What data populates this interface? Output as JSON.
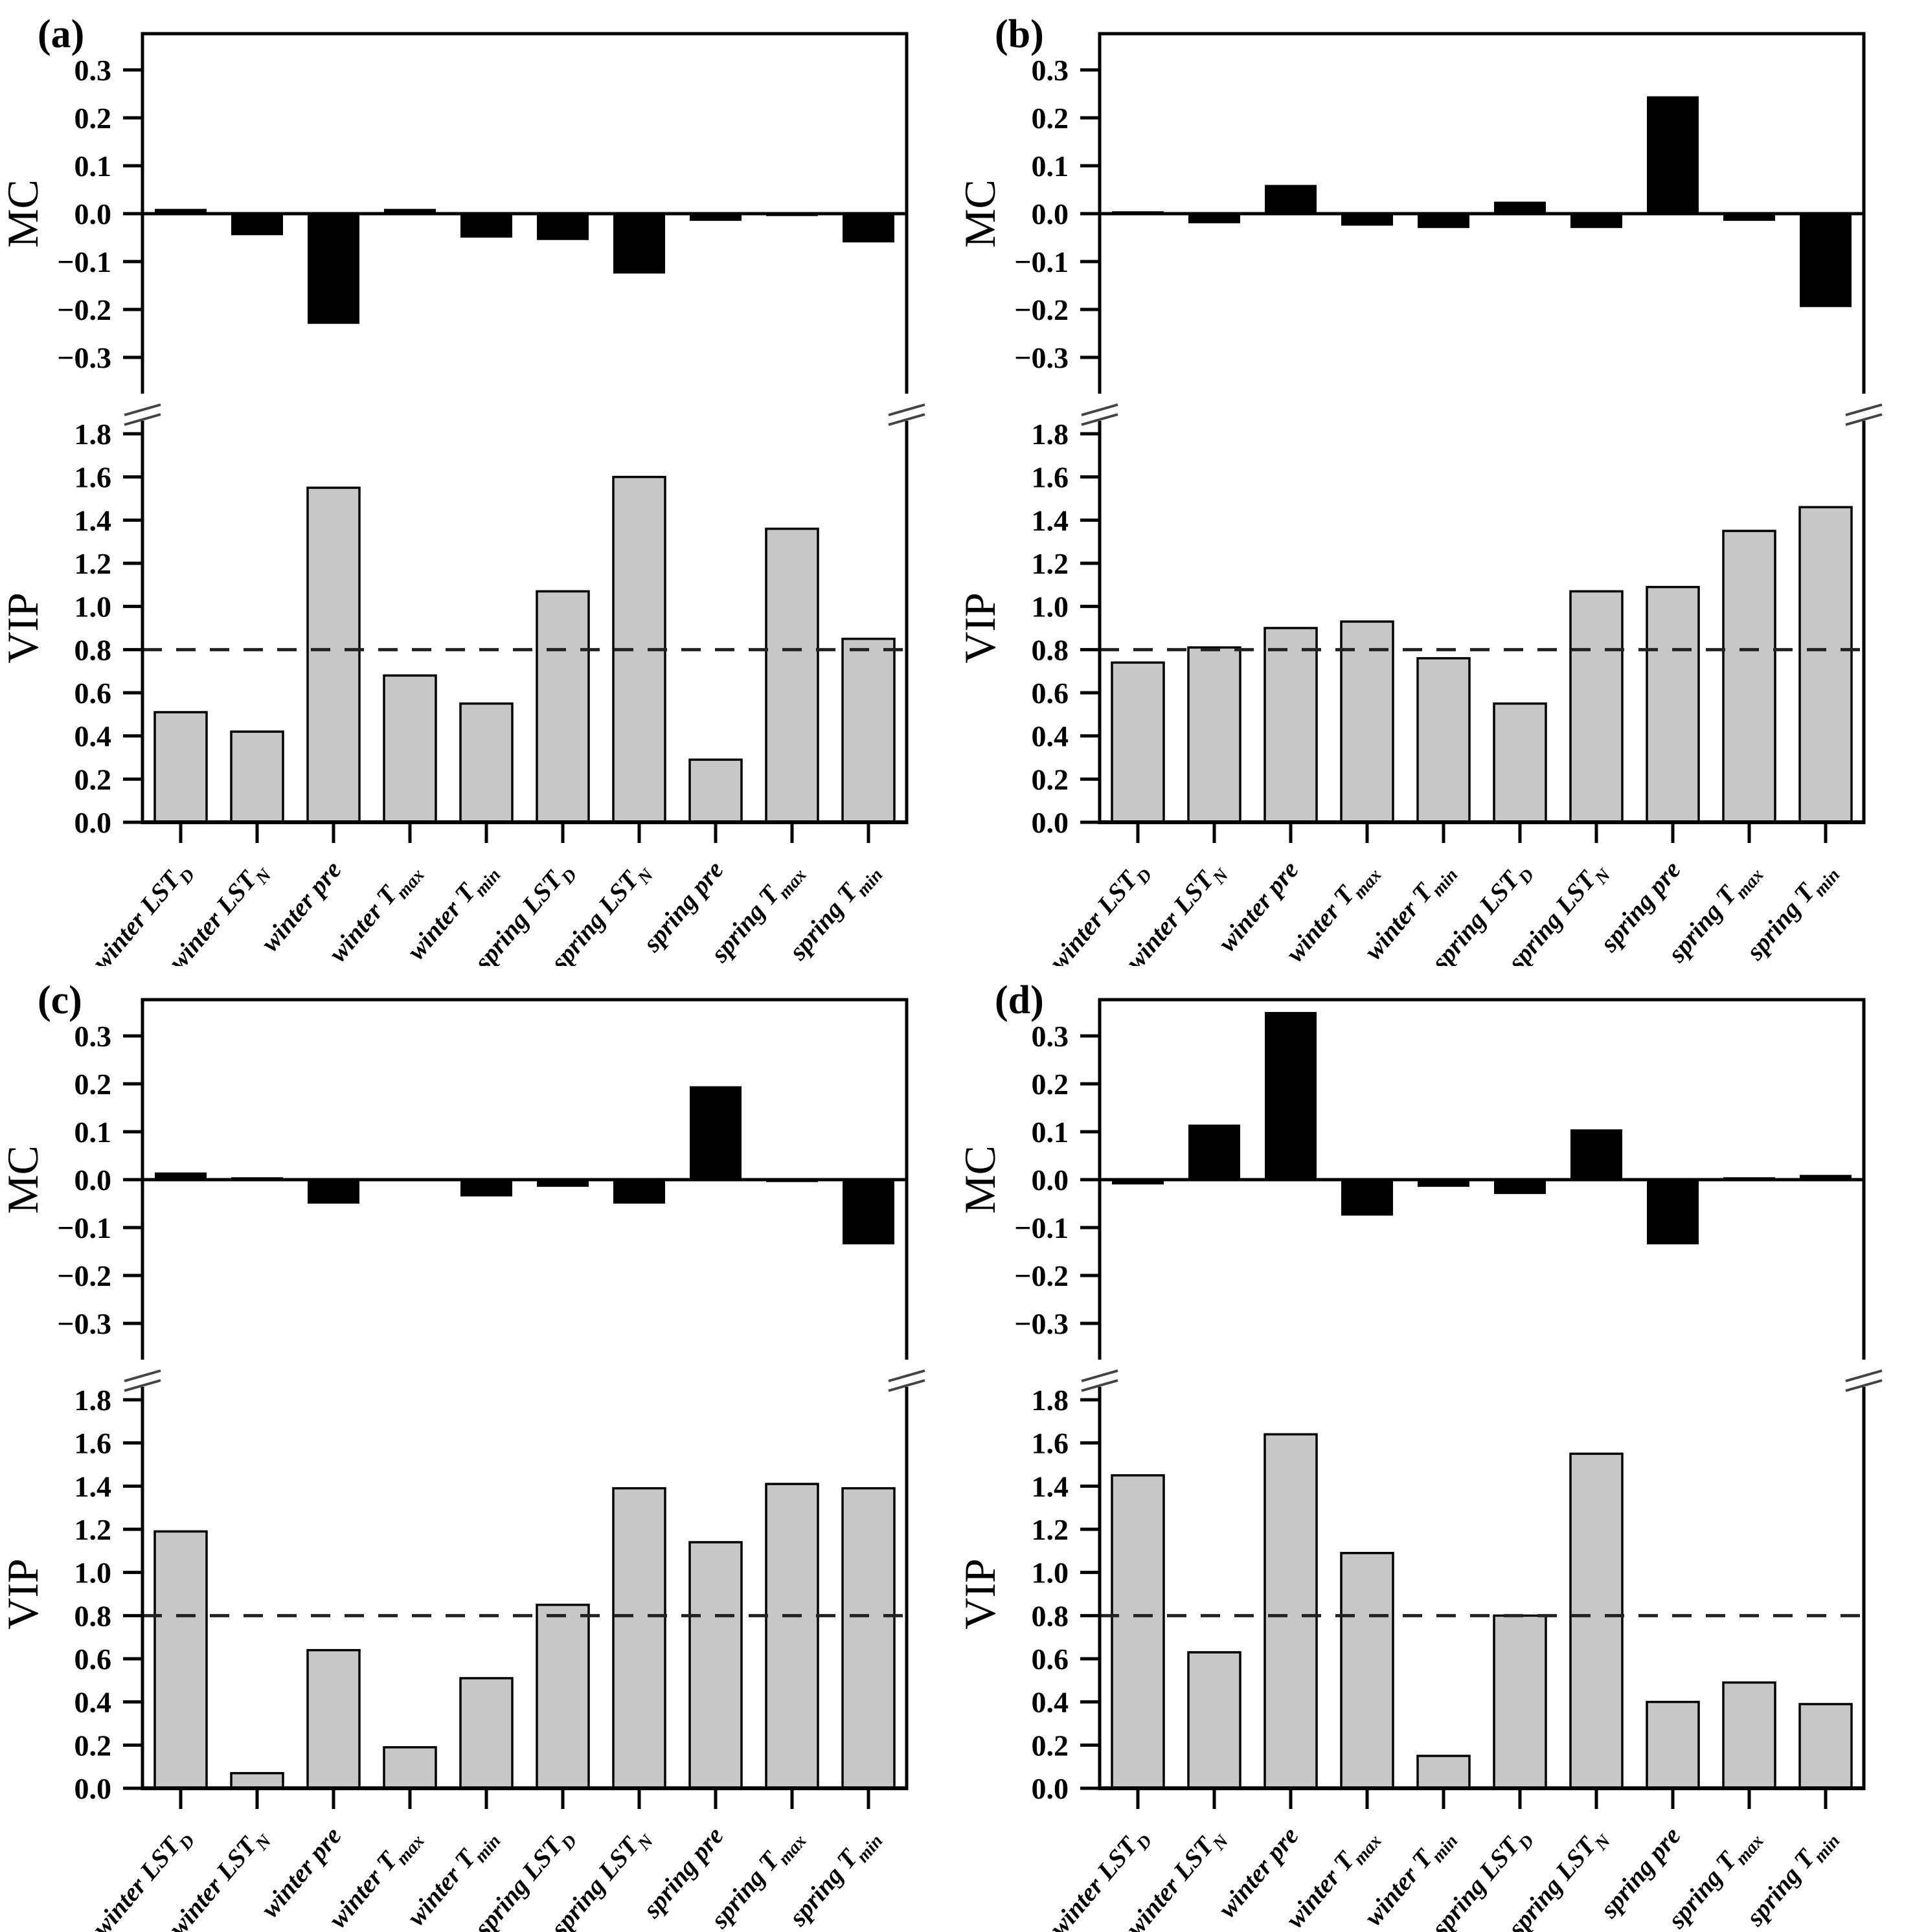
{
  "figure": {
    "categories_rich": [
      {
        "t": "winter LST",
        "s": "D"
      },
      {
        "t": "winter LST",
        "s": "N"
      },
      {
        "t": "winter pre",
        "s": ""
      },
      {
        "t": "winter T",
        "s": "max"
      },
      {
        "t": "winter T",
        "s": "min"
      },
      {
        "t": "spring LST",
        "s": "D"
      },
      {
        "t": "spring LST",
        "s": "N"
      },
      {
        "t": "spring pre",
        "s": ""
      },
      {
        "t": "spring T",
        "s": "max"
      },
      {
        "t": "spring T",
        "s": "min"
      }
    ],
    "mc_axis": {
      "label": "MC",
      "ticks": [
        0.3,
        0.2,
        0.1,
        0.0,
        -0.1,
        -0.2,
        -0.3
      ],
      "min": -0.375,
      "max": 0.375
    },
    "vip_axis": {
      "label": "VIP",
      "ticks": [
        1.8,
        1.6,
        1.4,
        1.2,
        1.0,
        0.8,
        0.6,
        0.4,
        0.2,
        0.0
      ],
      "min": 0,
      "max": 1.86,
      "threshold": 0.8
    },
    "colors": {
      "background": "#ffffff",
      "mc_bar": "#000000",
      "vip_bar": "#c7c7c7",
      "vip_bar_border": "#000000",
      "axis": "#000000",
      "threshold_line": "#222222",
      "text": "#000000"
    }
  },
  "chart_data": [
    {
      "type": "bar",
      "panel": "(a)",
      "broken_axis": true,
      "grid": false,
      "legend": "none",
      "categories": [
        "winter LST_D",
        "winter LST_N",
        "winter pre",
        "winter T_max",
        "winter T_min",
        "spring LST_D",
        "spring LST_N",
        "spring pre",
        "spring T_max",
        "spring T_min"
      ],
      "series": [
        {
          "name": "MC",
          "values": [
            0.01,
            -0.045,
            -0.23,
            0.01,
            -0.05,
            -0.055,
            -0.125,
            -0.015,
            -0.005,
            -0.06
          ]
        },
        {
          "name": "VIP",
          "values": [
            0.51,
            0.42,
            1.55,
            0.68,
            0.55,
            1.07,
            1.6,
            0.29,
            1.36,
            0.85
          ]
        }
      ],
      "mc_ylabel": "MC",
      "vip_ylabel": "VIP",
      "mc_ylim": [
        -0.375,
        0.375
      ],
      "vip_ylim": [
        0,
        1.86
      ],
      "mc_yticks": [
        0.3,
        0.2,
        0.1,
        0.0,
        -0.1,
        -0.2,
        -0.3
      ],
      "vip_yticks": [
        1.8,
        1.6,
        1.4,
        1.2,
        1.0,
        0.8,
        0.6,
        0.4,
        0.2,
        0.0
      ],
      "vip_threshold": 0.8
    },
    {
      "type": "bar",
      "panel": "(b)",
      "broken_axis": true,
      "grid": false,
      "legend": "none",
      "categories": [
        "winter LST_D",
        "winter LST_N",
        "winter pre",
        "winter T_max",
        "winter T_min",
        "spring LST_D",
        "spring LST_N",
        "spring pre",
        "spring T_max",
        "spring T_min"
      ],
      "series": [
        {
          "name": "MC",
          "values": [
            0.005,
            -0.02,
            0.06,
            -0.025,
            -0.03,
            0.025,
            -0.03,
            0.245,
            -0.015,
            -0.195
          ]
        },
        {
          "name": "VIP",
          "values": [
            0.74,
            0.81,
            0.9,
            0.93,
            0.76,
            0.55,
            1.07,
            1.09,
            1.35,
            1.46
          ]
        }
      ],
      "mc_ylabel": "MC",
      "vip_ylabel": "VIP",
      "mc_ylim": [
        -0.375,
        0.375
      ],
      "vip_ylim": [
        0,
        1.86
      ],
      "mc_yticks": [
        0.3,
        0.2,
        0.1,
        0.0,
        -0.1,
        -0.2,
        -0.3
      ],
      "vip_yticks": [
        1.8,
        1.6,
        1.4,
        1.2,
        1.0,
        0.8,
        0.6,
        0.4,
        0.2,
        0.0
      ],
      "vip_threshold": 0.8
    },
    {
      "type": "bar",
      "panel": "(c)",
      "broken_axis": true,
      "grid": false,
      "legend": "none",
      "categories": [
        "winter LST_D",
        "winter LST_N",
        "winter pre",
        "winter T_max",
        "winter T_min",
        "spring LST_D",
        "spring LST_N",
        "spring pre",
        "spring T_max",
        "spring T_min"
      ],
      "series": [
        {
          "name": "MC",
          "values": [
            0.015,
            0.005,
            -0.05,
            0.003,
            -0.035,
            -0.015,
            -0.05,
            0.195,
            -0.005,
            -0.135
          ]
        },
        {
          "name": "VIP",
          "values": [
            1.19,
            0.07,
            0.64,
            0.19,
            0.51,
            0.85,
            1.39,
            1.14,
            1.41,
            1.39
          ]
        }
      ],
      "mc_ylabel": "MC",
      "vip_ylabel": "VIP",
      "mc_ylim": [
        -0.375,
        0.375
      ],
      "vip_ylim": [
        0,
        1.86
      ],
      "mc_yticks": [
        0.3,
        0.2,
        0.1,
        0.0,
        -0.1,
        -0.2,
        -0.3
      ],
      "vip_yticks": [
        1.8,
        1.6,
        1.4,
        1.2,
        1.0,
        0.8,
        0.6,
        0.4,
        0.2,
        0.0
      ],
      "vip_threshold": 0.8
    },
    {
      "type": "bar",
      "panel": "(d)",
      "broken_axis": true,
      "grid": false,
      "legend": "none",
      "categories": [
        "winter LST_D",
        "winter LST_N",
        "winter pre",
        "winter T_max",
        "winter T_min",
        "spring LST_D",
        "spring LST_N",
        "spring pre",
        "spring T_max",
        "spring T_min"
      ],
      "series": [
        {
          "name": "MC",
          "values": [
            -0.01,
            0.115,
            0.35,
            -0.075,
            -0.015,
            -0.03,
            0.105,
            -0.135,
            0.005,
            0.01
          ]
        },
        {
          "name": "VIP",
          "values": [
            1.45,
            0.63,
            1.64,
            1.09,
            0.15,
            0.8,
            1.55,
            0.4,
            0.49,
            0.39
          ]
        }
      ],
      "mc_ylabel": "MC",
      "vip_ylabel": "VIP",
      "mc_ylim": [
        -0.375,
        0.375
      ],
      "vip_ylim": [
        0,
        1.86
      ],
      "mc_yticks": [
        0.3,
        0.2,
        0.1,
        0.0,
        -0.1,
        -0.2,
        -0.3
      ],
      "vip_yticks": [
        1.8,
        1.6,
        1.4,
        1.2,
        1.0,
        0.8,
        0.6,
        0.4,
        0.2,
        0.0
      ],
      "vip_threshold": 0.8
    }
  ]
}
